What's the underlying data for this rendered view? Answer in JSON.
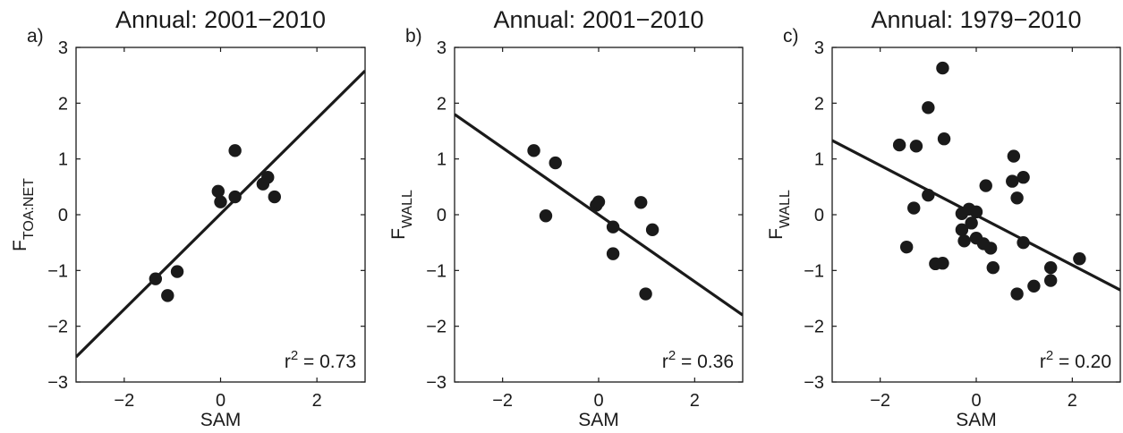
{
  "chart_data": [
    {
      "type": "scatter",
      "panel_label": "a)",
      "title": "Annual: 2001−2010",
      "xlabel": "SAM",
      "ylabel": {
        "main": "F",
        "sub": "TOA:NET"
      },
      "annotation": {
        "prefix": "r",
        "sup": "2",
        "suffix": " = 0.73"
      },
      "xlim": [
        -3,
        3
      ],
      "ylim": [
        -3,
        3
      ],
      "xticks": [
        -2,
        0,
        2
      ],
      "xtick_labels": [
        "−2",
        "0",
        "2"
      ],
      "yticks": [
        -3,
        -2,
        -1,
        0,
        1,
        2,
        3
      ],
      "ytick_labels": [
        "−3",
        "−2",
        "−1",
        "0",
        "1",
        "2",
        "3"
      ],
      "grid": false,
      "points": [
        {
          "x": -1.35,
          "y": -1.15
        },
        {
          "x": -1.1,
          "y": -1.45
        },
        {
          "x": -0.9,
          "y": -1.02
        },
        {
          "x": -0.05,
          "y": 0.42
        },
        {
          "x": 0.0,
          "y": 0.23
        },
        {
          "x": 0.3,
          "y": 1.15
        },
        {
          "x": 0.3,
          "y": 0.32
        },
        {
          "x": 0.88,
          "y": 0.55
        },
        {
          "x": 0.98,
          "y": 0.67
        },
        {
          "x": 1.12,
          "y": 0.32
        }
      ],
      "fit_line": [
        {
          "x": -3,
          "y": -2.55
        },
        {
          "x": 3,
          "y": 2.58
        }
      ]
    },
    {
      "type": "scatter",
      "panel_label": "b)",
      "title": "Annual: 2001−2010",
      "xlabel": "SAM",
      "ylabel": {
        "main": "F",
        "sub": "WALL"
      },
      "annotation": {
        "prefix": "r",
        "sup": "2",
        "suffix": " = 0.36"
      },
      "xlim": [
        -3,
        3
      ],
      "ylim": [
        -3,
        3
      ],
      "xticks": [
        -2,
        0,
        2
      ],
      "xtick_labels": [
        "−2",
        "0",
        "2"
      ],
      "yticks": [
        -3,
        -2,
        -1,
        0,
        1,
        2,
        3
      ],
      "ytick_labels": [
        "−3",
        "−2",
        "−1",
        "0",
        "1",
        "2",
        "3"
      ],
      "grid": false,
      "points": [
        {
          "x": -1.35,
          "y": 1.15
        },
        {
          "x": -0.9,
          "y": 0.93
        },
        {
          "x": -1.1,
          "y": -0.02
        },
        {
          "x": -0.05,
          "y": 0.17
        },
        {
          "x": 0.0,
          "y": 0.23
        },
        {
          "x": 0.3,
          "y": -0.22
        },
        {
          "x": 0.3,
          "y": -0.7
        },
        {
          "x": 0.88,
          "y": 0.22
        },
        {
          "x": 1.12,
          "y": -0.27
        },
        {
          "x": 0.98,
          "y": -1.42
        }
      ],
      "fit_line": [
        {
          "x": -3,
          "y": 1.8
        },
        {
          "x": 3,
          "y": -1.8
        }
      ]
    },
    {
      "type": "scatter",
      "panel_label": "c)",
      "title": "Annual: 1979−2010",
      "xlabel": "SAM",
      "ylabel": {
        "main": "F",
        "sub": "WALL"
      },
      "annotation": {
        "prefix": "r",
        "sup": "2",
        "suffix": " = 0.20"
      },
      "xlim": [
        -3,
        3
      ],
      "ylim": [
        -3,
        3
      ],
      "xticks": [
        -2,
        0,
        2
      ],
      "xtick_labels": [
        "−2",
        "0",
        "2"
      ],
      "yticks": [
        -3,
        -2,
        -1,
        0,
        1,
        2,
        3
      ],
      "ytick_labels": [
        "−3",
        "−2",
        "−1",
        "0",
        "1",
        "2",
        "3"
      ],
      "grid": false,
      "points": [
        {
          "x": -0.7,
          "y": 2.63
        },
        {
          "x": -1.0,
          "y": 1.92
        },
        {
          "x": -1.6,
          "y": 1.25
        },
        {
          "x": -1.25,
          "y": 1.23
        },
        {
          "x": -0.67,
          "y": 1.36
        },
        {
          "x": -1.0,
          "y": 0.35
        },
        {
          "x": -1.3,
          "y": 0.12
        },
        {
          "x": -1.45,
          "y": -0.58
        },
        {
          "x": -0.85,
          "y": -0.88
        },
        {
          "x": -0.7,
          "y": -0.87
        },
        {
          "x": -0.3,
          "y": 0.02
        },
        {
          "x": -0.15,
          "y": 0.1
        },
        {
          "x": -0.1,
          "y": -0.15
        },
        {
          "x": 0.0,
          "y": 0.05
        },
        {
          "x": -0.3,
          "y": -0.27
        },
        {
          "x": -0.25,
          "y": -0.47
        },
        {
          "x": 0.0,
          "y": -0.42
        },
        {
          "x": 0.15,
          "y": -0.52
        },
        {
          "x": 0.3,
          "y": -0.6
        },
        {
          "x": 0.2,
          "y": 0.52
        },
        {
          "x": 0.35,
          "y": -0.95
        },
        {
          "x": 0.78,
          "y": 1.05
        },
        {
          "x": 0.75,
          "y": 0.6
        },
        {
          "x": 0.85,
          "y": 0.3
        },
        {
          "x": 0.98,
          "y": 0.67
        },
        {
          "x": 0.98,
          "y": -0.5
        },
        {
          "x": 0.85,
          "y": -1.42
        },
        {
          "x": 1.2,
          "y": -1.28
        },
        {
          "x": 1.55,
          "y": -0.95
        },
        {
          "x": 1.55,
          "y": -1.18
        },
        {
          "x": 2.15,
          "y": -0.79
        }
      ],
      "fit_line": [
        {
          "x": -3,
          "y": 1.33
        },
        {
          "x": 3,
          "y": -1.35
        }
      ]
    }
  ],
  "colors": {
    "marker": "#1a1a1a",
    "line": "#1a1a1a",
    "axes": "#1a1a1a",
    "background": "#ffffff"
  }
}
